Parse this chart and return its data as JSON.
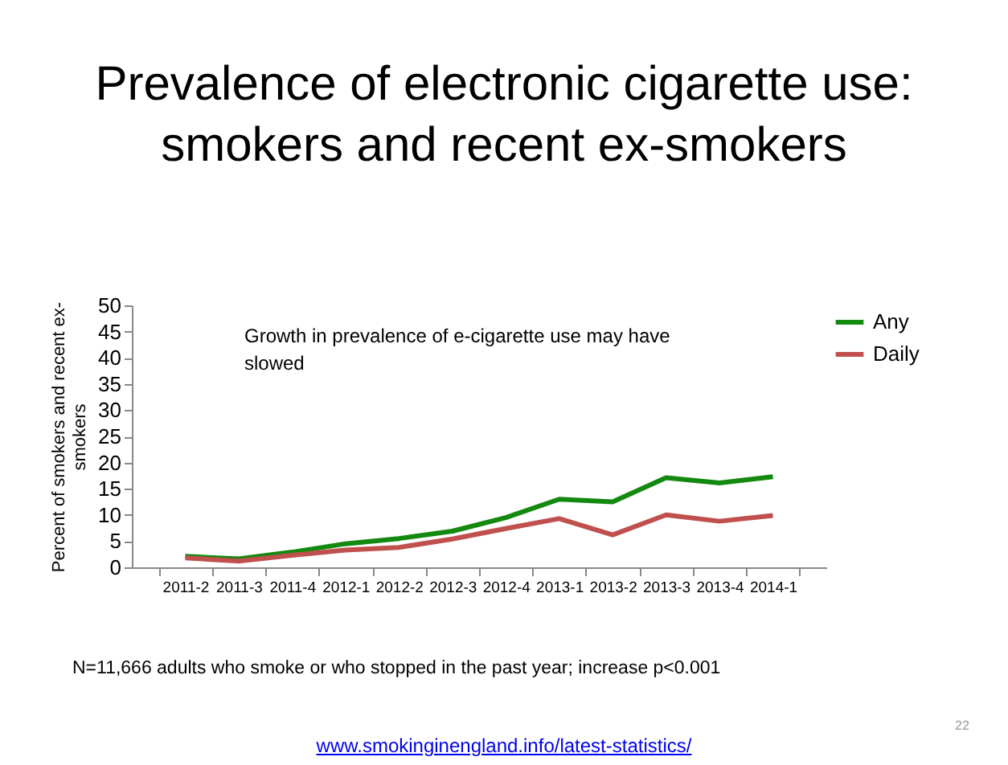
{
  "chart_data": {
    "type": "line",
    "title": "Prevalence of electronic cigarette use: smokers and recent ex-smokers",
    "ylabel": "Percent of smokers and recent ex-smokers",
    "categories": [
      "2011-2",
      "2011-3",
      "2011-4",
      "2012-1",
      "2012-2",
      "2012-3",
      "2012-4",
      "2013-1",
      "2013-2",
      "2013-3",
      "2013-4",
      "2014-1"
    ],
    "series": [
      {
        "name": "Any",
        "color": "#13890f",
        "values": [
          2.1,
          1.6,
          2.9,
          4.5,
          5.5,
          6.9,
          9.5,
          13.0,
          12.5,
          17.1,
          16.1,
          17.3
        ]
      },
      {
        "name": "Daily",
        "color": "#c0504d",
        "values": [
          1.8,
          1.2,
          2.3,
          3.3,
          3.8,
          5.4,
          7.4,
          9.3,
          6.2,
          10.0,
          8.8,
          9.9
        ]
      }
    ],
    "ylim": [
      0,
      50
    ],
    "yticks": [
      0,
      5,
      10,
      15,
      20,
      25,
      30,
      35,
      40,
      45,
      50
    ],
    "grid": false,
    "legend": "right",
    "marker": "none",
    "line_style": "solid",
    "annotations": [
      "Growth in prevalence of e-cigarette use may have slowed",
      "N=11,666 adults who smoke or who stopped in the past year; increase p<0.001",
      "www.smokinginengland.info/latest-statistics/",
      "22"
    ]
  }
}
